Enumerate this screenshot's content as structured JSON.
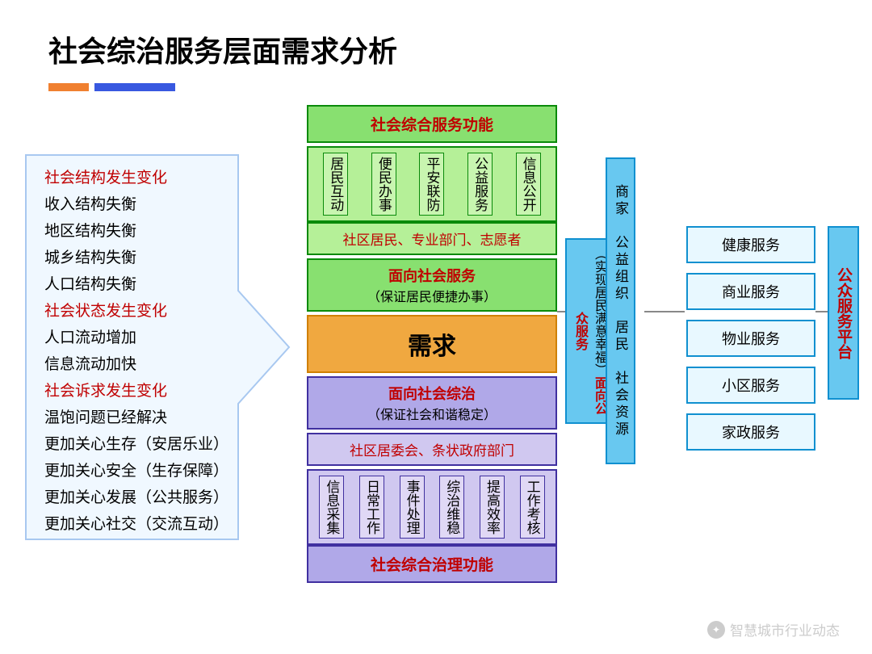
{
  "title": "社会综治服务层面需求分析",
  "bars": {
    "color1": "#f08030",
    "color2": "#3858e0"
  },
  "arrow": {
    "fill": "#f0f8ff",
    "stroke": "#a8c8f0"
  },
  "list": [
    {
      "text": "社会结构发生变化",
      "red": true
    },
    {
      "text": "收入结构失衡",
      "red": false
    },
    {
      "text": "地区结构失衡",
      "red": false
    },
    {
      "text": "城乡结构失衡",
      "red": false
    },
    {
      "text": "人口结构失衡",
      "red": false
    },
    {
      "text": "社会状态发生变化",
      "red": true
    },
    {
      "text": "人口流动增加",
      "red": false
    },
    {
      "text": "信息流动加快",
      "red": false
    },
    {
      "text": "社会诉求发生变化",
      "red": true
    },
    {
      "text": "温饱问题已经解决",
      "red": false
    },
    {
      "text": "更加关心生存（安居乐业）",
      "red": false
    },
    {
      "text": "更加关心安全（生存保障）",
      "red": false
    },
    {
      "text": "更加关心发展（公共服务）",
      "red": false
    },
    {
      "text": "更加关心社交（交流互动）",
      "red": false
    }
  ],
  "top_header": "社会综合服务功能",
  "green_cols": [
    "居民互动",
    "便民办事",
    "平安联防",
    "公益服务",
    "信息公开"
  ],
  "green_sub": "社区居民、专业部门、志愿者",
  "social_svc": {
    "t1": "面向社会服务",
    "t2": "（保证居民便捷办事）"
  },
  "demand": "需求",
  "social_gov": {
    "t1": "面向社会综治",
    "t2": "（保证社会和谐稳定）"
  },
  "purple_sub": "社区居委会、条状政府部门",
  "purple_cols": [
    "信息采集",
    "日常工作",
    "事件处理",
    "综治维稳",
    "提高效率",
    "工作考核"
  ],
  "bottom_header": "社会综合治理功能",
  "vbar1": {
    "red": "面向公众服务",
    "black": "（实现居民满意幸福）"
  },
  "vbar2": "商家　公益组织　居民　社会资源",
  "vbar3": "公众服务平台",
  "services": [
    "健康服务",
    "商业服务",
    "物业服务",
    "小区服务",
    "家政服务"
  ],
  "footer": "智慧城市行业动态"
}
